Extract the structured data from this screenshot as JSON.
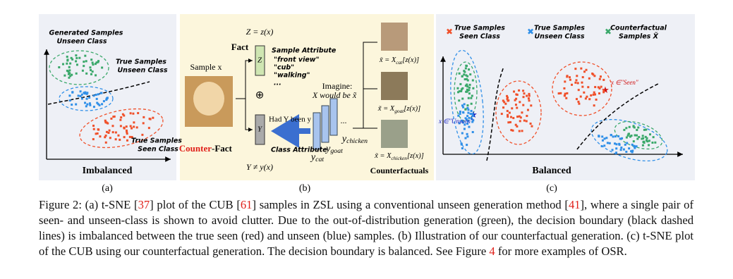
{
  "panel_a": {
    "label": "(a)",
    "title": "Imbalanced",
    "generated": [
      "Generated Samples",
      "Unseen Class"
    ],
    "true_unseen": [
      "True Samples",
      "Unseen Class"
    ],
    "true_seen": [
      "True Samples",
      "Seen Class"
    ]
  },
  "panel_b": {
    "label": "(b)",
    "z_eq": "Z = z(x)",
    "fact": "Fact",
    "sample": "Sample x",
    "sample_attribute": "Sample Attribute",
    "attributes": [
      "\"front view\"",
      "\"cub\"",
      "\"walking\"",
      "..."
    ],
    "z_box": "Z",
    "y_box": "Y",
    "oplus": "⊕",
    "imagine": [
      "Imagine:",
      "X would be x̃"
    ],
    "had": "Had Y been y",
    "counter": "Counter",
    "fact_suffix": "-Fact",
    "class_attribute": "Class Attribute",
    "dots": "...",
    "y_labels": [
      {
        "base": "y",
        "sub": "cat"
      },
      {
        "base": "y",
        "sub": "goat"
      },
      {
        "base": "y",
        "sub": "chicken"
      }
    ],
    "y_neq": "Y ≠ y(x)",
    "equations": [
      {
        "lhs": "x̃ = X",
        "sub": "cat",
        "rhs": "[z(x)]"
      },
      {
        "lhs": "x̃ = X",
        "sub": "goat",
        "rhs": "[z(x)]"
      },
      {
        "lhs": "x̃ = X",
        "sub": "chicken",
        "rhs": "[z(x)]"
      }
    ],
    "counterfactuals": "Counterfactuals"
  },
  "panel_c": {
    "label": "(c)",
    "title": "Balanced",
    "legend": [
      {
        "marker": "✖",
        "color": "#f0502a",
        "lines": [
          "True Samples",
          "Seen Class"
        ]
      },
      {
        "marker": "✖",
        "color": "#2f8fe8",
        "lines": [
          "True Samples",
          "Unseen Class"
        ]
      },
      {
        "marker": "✖",
        "color": "#3aa86a",
        "lines": [
          "Counterfactual",
          "Samples X̃"
        ]
      }
    ],
    "unseen_point": "x ∈\"Unseen\"",
    "seen_point": "x ∈\"Seen\""
  },
  "caption": {
    "segments": [
      "Figure 2: (a) t-SNE [",
      "37",
      "] plot of the CUB [",
      "61",
      "] samples in ZSL using a conventional unseen generation method [",
      "41",
      "], where a single pair of seen- and unseen-class is shown to avoid clutter. Due to the out-of-distribution generation (green), the decision boundary (black dashed lines) is imbalanced between the true seen (red) and unseen (blue) samples. (b) Illustration of our counterfactual generation. (c) t-SNE plot of the CUB using our counterfactual generation. The decision boundary is balanced. See Figure ",
      "4",
      " for more examples of OSR."
    ]
  }
}
